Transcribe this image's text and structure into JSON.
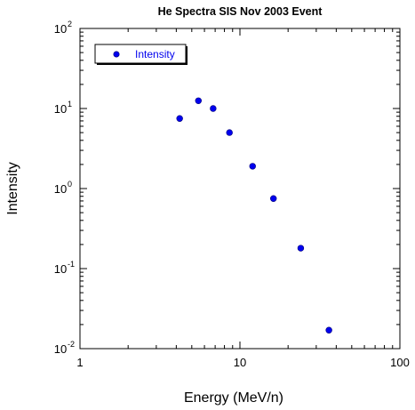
{
  "chart_data": {
    "type": "scatter",
    "title": "He Spectra SIS Nov 2003 Event",
    "xlabel": "Energy (MeV/n)",
    "ylabel": "Intensity",
    "xscale": "log",
    "yscale": "log",
    "xlim": [
      1,
      100
    ],
    "ylim": [
      0.01,
      100
    ],
    "x_ticks": [
      {
        "value": 1,
        "label": "1"
      },
      {
        "value": 10,
        "label": "10"
      },
      {
        "value": 100,
        "label": "100"
      }
    ],
    "y_ticks": [
      {
        "value": 0.01,
        "base": "10",
        "exp": "-2"
      },
      {
        "value": 0.1,
        "base": "10",
        "exp": "-1"
      },
      {
        "value": 1,
        "base": "10",
        "exp": "0"
      },
      {
        "value": 10,
        "base": "10",
        "exp": "1"
      },
      {
        "value": 100,
        "base": "10",
        "exp": "2"
      }
    ],
    "grid": false,
    "legend_position": "top-left",
    "series": [
      {
        "name": "Intensity",
        "color": "#0000ee",
        "x": [
          4.2,
          5.5,
          6.8,
          8.6,
          12.0,
          16.2,
          24.0,
          36.0
        ],
        "y": [
          7.5,
          12.5,
          10.0,
          5.0,
          1.9,
          0.75,
          0.18,
          0.017
        ]
      }
    ]
  }
}
